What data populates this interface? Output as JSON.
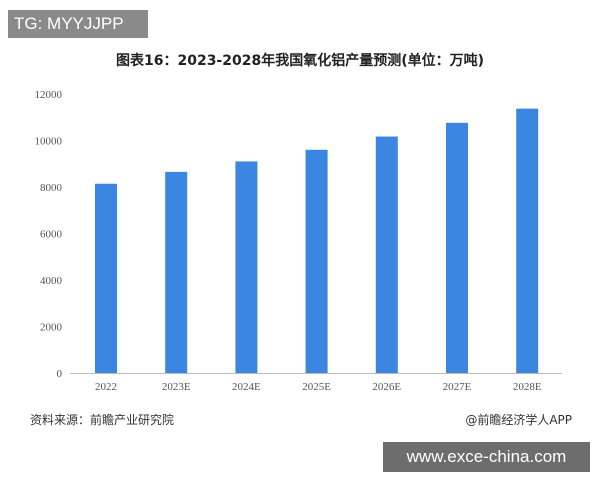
{
  "overlay_tag": "TG: MYYJJPP",
  "watermark_url": "www.exce-china.com",
  "source": "资料来源：前瞻产业研究院",
  "app_credit": "@前瞻经济学人APP",
  "chart_data": {
    "type": "bar",
    "title": "图表16：2023-2028年我国氧化铝产量预测(单位：万吨)",
    "categories": [
      "2022",
      "2023E",
      "2024E",
      "2025E",
      "2026E",
      "2027E",
      "2028E"
    ],
    "values": [
      8140,
      8650,
      9100,
      9600,
      10170,
      10760,
      11370
    ],
    "ylim": [
      0,
      12000
    ],
    "yticks": [
      "0",
      "2000",
      "4000",
      "6000",
      "8000",
      "10000",
      "12000"
    ],
    "grid": false,
    "bar_color": "#3a86e0"
  }
}
